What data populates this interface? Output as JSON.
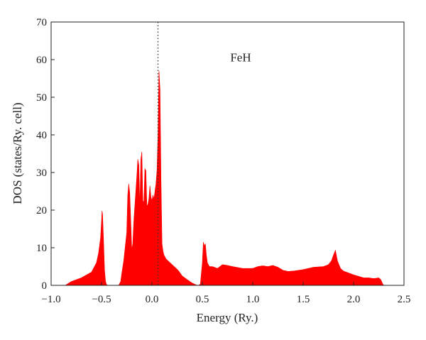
{
  "chart_data": {
    "type": "area",
    "title": "",
    "xlabel": "Energy (Ry.)",
    "ylabel": "DOS (states/Ry. cell)",
    "xlim": [
      -1.0,
      2.5
    ],
    "ylim": [
      0,
      70
    ],
    "xticks": [
      -1.0,
      -0.5,
      0.0,
      0.5,
      1.0,
      1.5,
      2.0,
      2.5
    ],
    "xtick_labels": [
      "−1.0",
      "−0.5",
      "0.0",
      "0.5",
      "1.0",
      "1.5",
      "2.0",
      "2.5"
    ],
    "yticks": [
      0,
      10,
      20,
      30,
      40,
      50,
      60,
      70
    ],
    "ytick_labels": [
      "0",
      "10",
      "20",
      "30",
      "40",
      "50",
      "60",
      "70"
    ],
    "grid": false,
    "fill_color": "#ff0000",
    "reference_line": {
      "x": 0.06,
      "style": "dotted",
      "color": "#333333"
    },
    "annotation": {
      "text": "FeH",
      "x": 0.88,
      "y": 59.5
    },
    "series": [
      {
        "x": [
          -0.86,
          -0.8,
          -0.7,
          -0.6,
          -0.55,
          -0.53,
          -0.52,
          -0.51,
          -0.5,
          -0.495,
          -0.49,
          -0.48,
          -0.47,
          -0.46,
          -0.45,
          -0.44,
          -0.42,
          -0.33,
          -0.31,
          -0.3,
          -0.28,
          -0.26,
          -0.25,
          -0.24,
          -0.23,
          -0.22,
          -0.21,
          -0.2,
          -0.19,
          -0.18,
          -0.17,
          -0.16,
          -0.15,
          -0.14,
          -0.13,
          -0.12,
          -0.11,
          -0.1,
          -0.09,
          -0.08,
          -0.07,
          -0.06,
          -0.05,
          -0.04,
          -0.03,
          -0.02,
          -0.01,
          0.0,
          0.01,
          0.02,
          0.03,
          0.04,
          0.05,
          0.06,
          0.07,
          0.08,
          0.09,
          0.1,
          0.11,
          0.12,
          0.14,
          0.18,
          0.22,
          0.26,
          0.3,
          0.35,
          0.4,
          0.44,
          0.46,
          0.48,
          0.5,
          0.51,
          0.52,
          0.53,
          0.54,
          0.55,
          0.57,
          0.6,
          0.65,
          0.7,
          0.75,
          0.8,
          0.9,
          1.0,
          1.05,
          1.1,
          1.15,
          1.2,
          1.25,
          1.3,
          1.35,
          1.4,
          1.5,
          1.6,
          1.7,
          1.75,
          1.78,
          1.8,
          1.82,
          1.84,
          1.87,
          1.9,
          2.0,
          2.1,
          2.15,
          2.2,
          2.25,
          2.27,
          2.29,
          2.3,
          2.5
        ],
        "y": [
          0,
          1.0,
          2.0,
          3.5,
          6.0,
          8.5,
          10.5,
          12.5,
          17.0,
          19.8,
          19.0,
          12.0,
          4.0,
          1.0,
          0.2,
          0,
          0,
          0,
          1.0,
          3.0,
          6.5,
          11.5,
          14.0,
          24.0,
          27.0,
          24.5,
          17.0,
          9.5,
          11.0,
          17.0,
          21.0,
          25.0,
          29.0,
          33.5,
          32.0,
          21.0,
          33.5,
          35.5,
          22.5,
          22.0,
          31.0,
          30.5,
          21.0,
          21.5,
          23.0,
          26.5,
          23.5,
          22.5,
          24.0,
          23.0,
          25.0,
          27.0,
          30.5,
          40.0,
          57.0,
          52.0,
          28.0,
          11.0,
          9.0,
          8.0,
          7.0,
          6.0,
          5.0,
          4.0,
          2.5,
          1.5,
          0.6,
          0.1,
          0,
          0.3,
          6.0,
          11.5,
          10.5,
          11.0,
          8.0,
          6.0,
          5.0,
          5.0,
          4.5,
          5.5,
          5.3,
          5.0,
          4.5,
          4.5,
          5.0,
          5.2,
          5.0,
          5.3,
          4.8,
          4.0,
          3.7,
          3.8,
          4.2,
          4.8,
          5.0,
          5.5,
          6.5,
          8.0,
          9.3,
          6.5,
          4.5,
          3.8,
          2.8,
          2.0,
          2.0,
          1.8,
          2.0,
          1.5,
          0.3,
          0,
          0
        ]
      }
    ]
  }
}
